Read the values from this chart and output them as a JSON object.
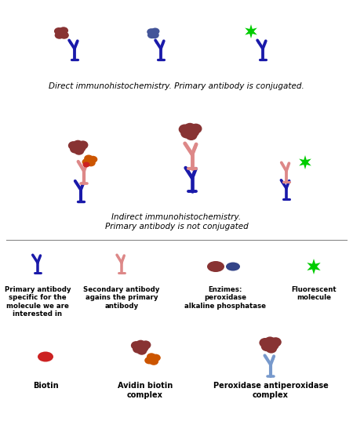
{
  "bg_color": "#ffffff",
  "blue": "#1a1aaa",
  "light_blue": "#7799cc",
  "pink": "#dd8888",
  "dark_red": "#883333",
  "red_blob": "#cc2222",
  "orange": "#cc5500",
  "green": "#00cc00",
  "navy": "#223388",
  "section1_text": "Direct immunohistochemistry. Primary antibody is conjugated.",
  "section2_text": "Indirect immunohistochemistry.\nPrimary antibody is not conjugated",
  "legend_labels": [
    "Primary antibody\nspecific for the\nmolecule we are\ninterested in",
    "Secondary antibody\nagains the primary\nantibody",
    "Enzimes:\nperoxidase\nalkaline phosphatase",
    "Fluorescent\nmolecule"
  ],
  "bottom_labels": [
    "Biotin",
    "Avidin biotin\ncomplex",
    "Peroxidase antiperoxidase\ncomplex"
  ]
}
